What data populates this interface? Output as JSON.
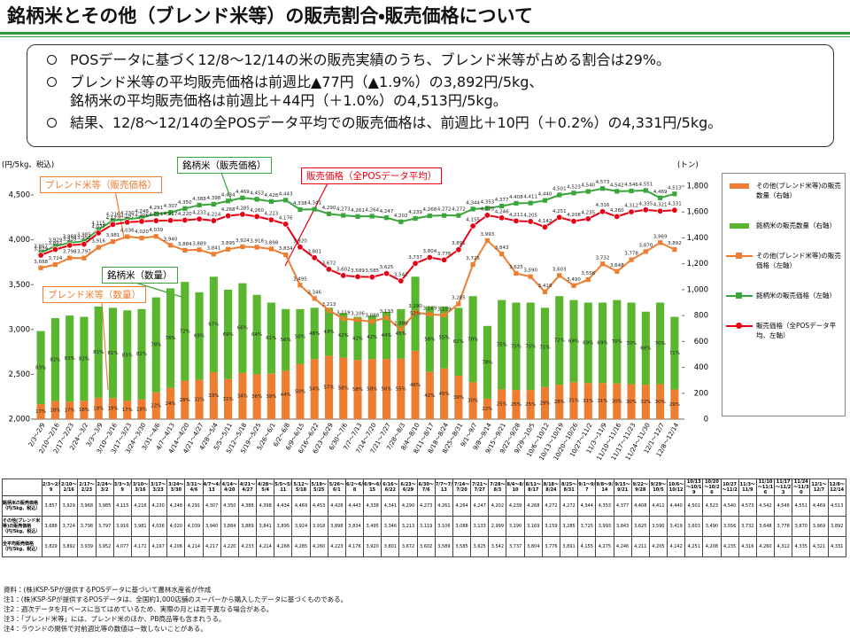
{
  "title": "銘柄米とその他（ブレンド米等）の販売割合・販売価格について",
  "bullets": [
    [
      "POSデータに基づく12/8～12/14の米の販売実績のうち、ブレンド米等が占める割合は29%。"
    ],
    [
      "ブレンド米等の平均販売価格は前週比▲77円（▲1.9%）の3,892円/5kg、",
      "銘柄米の平均販売価格は前週比＋44円（＋1.0%）の4,513円/5kg。"
    ],
    [
      "結果、12/8～12/14の全POSデータ平均での販売価格は、前週比＋10円（＋0.2%）の4,331円/5kg。"
    ]
  ],
  "chart_data": {
    "type": "combo",
    "y_label": "(円/5kg、税込)",
    "y2_label": "(トン)",
    "annotations": [
      "銘柄米（販売価格）",
      "ブレンド米等（販売価格）",
      "販売価格（全POSデータ平均）",
      "銘柄米（数量）",
      "ブレンド米等（数量）"
    ],
    "categories": [
      "2/3～2/9",
      "2/10～2/16",
      "2/17～2/23",
      "2/24～3/2",
      "3/3～3/9",
      "3/10～3/16",
      "3/17～3/23",
      "3/24～3/30",
      "3/31～4/6",
      "4/7～4/13",
      "4/14～4/20",
      "4/21～4/27",
      "4/28～5/4",
      "5/5～5/11",
      "5/12～5/18",
      "5/19～5/25",
      "5/26～6/1",
      "6/2～6/8",
      "6/9～6/15",
      "6/16～6/22",
      "6/23～6/29",
      "6/30～7/6",
      "7/7～7/13",
      "7/14～7/20",
      "7/21～7/27",
      "7/28～8/3",
      "8/4～8/10",
      "8/11～8/17",
      "8/18～8/24",
      "8/25～8/31",
      "9/1～9/7",
      "9/8～9/14",
      "9/15～9/21",
      "9/22～9/28",
      "9/29～10/5",
      "10/6～10/12",
      "10/13～10/19",
      "10/20～10/26",
      "10/27～11/2",
      "11/3～11/9",
      "11/10～11/16",
      "11/17～11/23",
      "11/24～11/30",
      "12/1～12/7",
      "12/8～12/14"
    ],
    "ylim": [
      2000,
      4600
    ],
    "yticks": [
      {
        "value": 2000,
        "label": "2,000"
      },
      {
        "value": 2500,
        "label": "2,500"
      },
      {
        "value": 3000,
        "label": "3,000"
      },
      {
        "value": 3500,
        "label": "3,500"
      },
      {
        "value": 4000,
        "label": "4,000"
      },
      {
        "value": 4500,
        "label": "4,500"
      }
    ],
    "y2lim": [
      0,
      1800
    ],
    "y2ticks": [
      0,
      200,
      400,
      600,
      800,
      {
        "value": 1000,
        "label": "1,000"
      },
      {
        "value": 1200,
        "label": "1,200"
      },
      {
        "value": 1400,
        "label": "1,400"
      },
      {
        "value": 1600,
        "label": "1,600"
      },
      {
        "value": 1800,
        "label": "1,800"
      }
    ],
    "series": [
      {
        "name": "その他(ブレンド米等)の販売数量（右軸）",
        "type": "bar",
        "axis": "y2",
        "color": "#ed7d31",
        "values": [
          116,
          140,
          136,
          142,
          165,
          163,
          143,
          153,
          207,
          242,
          297,
          304,
          363,
          310,
          357,
          346,
          351,
          374,
          425,
          464,
          490,
          476,
          458,
          464,
          465,
          468,
          528,
          365,
          392,
          335,
          285,
          158,
          230,
          225,
          225,
          249,
          266,
          285,
          279,
          279,
          276,
          270,
          266,
          270,
          229
        ],
        "share_labels": [
          "17%",
          "18%",
          "17%",
          "18%",
          "19%",
          "19%",
          "17%",
          "18%",
          "22%",
          "24%",
          "28%",
          "31%",
          "33%",
          "31%",
          "34%",
          "36%",
          "39%",
          "44%",
          "50%",
          "54%",
          "57%",
          "58%",
          "58%",
          "58%",
          "56%",
          "55%",
          "48%",
          "42%",
          "45%",
          "39%",
          "30%",
          "22%",
          "25%",
          "25%",
          "25%",
          "29%",
          "28%",
          "31%",
          "31%",
          "31%",
          "30%",
          "30%",
          "32%",
          "30%",
          "29%"
        ]
      },
      {
        "name": "銘柄米の販売数量（右軸）",
        "type": "bar",
        "axis": "y2",
        "color": "#5ab52f",
        "values": [
          564,
          640,
          664,
          648,
          705,
          697,
          697,
          697,
          733,
          768,
          763,
          676,
          737,
          690,
          693,
          614,
          549,
          476,
          425,
          396,
          370,
          344,
          332,
          336,
          365,
          382,
          572,
          505,
          478,
          525,
          665,
          562,
          690,
          675,
          675,
          611,
          684,
          635,
          621,
          621,
          644,
          630,
          564,
          630,
          561
        ],
        "share_labels": [
          "83%",
          "82%",
          "83%",
          "82%",
          "81%",
          "81%",
          "83%",
          "82%",
          "78%",
          "76%",
          "72%",
          "69%",
          "67%",
          "69%",
          "66%",
          "64%",
          "61%",
          "56%",
          "50%",
          "46%",
          "43%",
          "42%",
          "42%",
          "42%",
          "44%",
          "45%",
          "52%",
          "58%",
          "55%",
          "61%",
          "70%",
          "78%",
          "75%",
          "75%",
          "75%",
          "71%",
          "72%",
          "69%",
          "69%",
          "69%",
          "70%",
          "70%",
          "68%",
          "70%",
          "71%"
        ]
      },
      {
        "name": "その他(ブレンド米等)の販売価格（左軸）",
        "type": "line",
        "axis": "y",
        "color": "#ed7d31",
        "marker": "square",
        "values": [
          3688,
          3724,
          3798,
          3797,
          3916,
          3981,
          4036,
          4020,
          4039,
          3940,
          3884,
          3889,
          3841,
          3895,
          3924,
          3918,
          3898,
          3834,
          3495,
          3346,
          3213,
          3119,
          3106,
          3088,
          3133,
          2999,
          3190,
          3169,
          3159,
          3285,
          3725,
          3993,
          3843,
          3625,
          3590,
          3419,
          3603,
          3490,
          3556,
          3732,
          3648,
          3778,
          3870,
          3969,
          3892
        ],
        "value_labels": [
          "3,688",
          "3,724",
          "3,798",
          "3,797",
          "3,916",
          "3,981",
          "4,036",
          "4,020",
          "4,039",
          "3,940",
          "3,884",
          "3,889",
          "3,841",
          "3,895",
          "3,924",
          "3,918",
          "3,898",
          "3,834",
          "3,495",
          "3,346",
          "3,213",
          "3,119",
          "3,106",
          "3,088",
          "3,133",
          "2,999",
          "3,190",
          "3,169",
          "3,159",
          "3,285",
          "3,725",
          "3,993",
          "3,843",
          "3,625",
          "3,590",
          "3,419",
          "3,603",
          "3,490",
          "3,556",
          "3,732",
          "3,648",
          "3,778",
          "3,870",
          "3,969",
          "3,892"
        ]
      },
      {
        "name": "銘柄米の販売価格（左軸）",
        "type": "line",
        "axis": "y",
        "color": "#3aa53a",
        "marker": "square",
        "values": [
          3857,
          3929,
          3968,
          3985,
          4115,
          4216,
          4230,
          4248,
          4291,
          4307,
          4350,
          4388,
          4398,
          4434,
          4469,
          4453,
          4428,
          4443,
          4338,
          4341,
          4290,
          4273,
          4261,
          4264,
          4247,
          4202,
          4239,
          4268,
          4272,
          4272,
          4344,
          4353,
          4377,
          4408,
          4411,
          4440,
          4501,
          4523,
          4540,
          4573,
          4542,
          4546,
          4551,
          4469,
          4513
        ],
        "value_labels": [
          "3,857",
          "3,929",
          "3,968",
          "3,985",
          "4,115",
          "4,216",
          "4,230",
          "4,248",
          "4,291",
          "4,307",
          "4,350",
          "4,388",
          "4,398",
          "4,434",
          "4,469",
          "4,453",
          "4,428",
          "4,443",
          "4,338",
          "4,341",
          "4,290",
          "4,273",
          "4,261",
          "4,264",
          "4,247",
          "4,202",
          "4,239",
          "4,268",
          "4,272",
          "4,272",
          "4,344",
          "4,353",
          "4,377",
          "4,408",
          "4,411",
          "4,440",
          "4,501",
          "4,523",
          "4,540",
          "4,573",
          "4,542",
          "4,546",
          "4,551",
          "4,469",
          "4,513"
        ]
      },
      {
        "name": "販売価格（全POSデータ平均、左軸）",
        "type": "line",
        "axis": "y",
        "color": "#e60012",
        "marker": "circle",
        "values": [
          3829,
          3892,
          3939,
          3952,
          4077,
          4172,
          4197,
          4206,
          4214,
          4217,
          4220,
          4233,
          4214,
          4268,
          4285,
          4260,
          4223,
          4176,
          3920,
          3801,
          3672,
          3602,
          3589,
          3585,
          3625,
          3542,
          3737,
          3804,
          3776,
          3891,
          4155,
          4275,
          4246,
          4211,
          4205,
          4142,
          4251,
          4208,
          4235,
          4316,
          4260,
          4312,
          4335,
          4321,
          4331
        ],
        "value_labels": [
          "3,829",
          "3,892",
          "3,939",
          "3,952",
          "4,077",
          "4,172",
          "4,197",
          "4,206",
          "4,214",
          "4,217",
          "4,220",
          "4,233",
          "4,214",
          "4,268",
          "4,285",
          "4,260",
          "4,223",
          "4,176",
          "3,920",
          "3,801",
          "3,672",
          "3,602",
          "3,589",
          "3,585",
          "3,625",
          "3,542",
          "3,737",
          "3,804",
          "3,776",
          "3,891",
          "4,155",
          "4,275",
          "4,246",
          "4,211",
          "4,205",
          "4,142",
          "4,251",
          "4,208",
          "4,235",
          "4,316",
          "4,260",
          "4,312",
          "4,335",
          "4,321",
          "4,331"
        ]
      }
    ]
  },
  "table": {
    "rows": [
      {
        "label": "銘柄米の販売価格（円/5kg、税込）",
        "series": 3
      },
      {
        "label": "その他(ブレンド米等)の販売価格（円/5kg、税込）",
        "series": 2
      },
      {
        "label": "全平均販売価格（円/5kg、税込）",
        "series": 4
      }
    ]
  },
  "notes": [
    "資料：(株)KSP-SPが提供するPOSデータに基づいて農林水産省が作成",
    "注1：(株)KSP-SPが提供するPOSデータは、全国約1,000店舗のスーパーから購入したデータに基づくものである。",
    "注2：週次データを月ベースに当てはめているため、実際の月とは若干異なる場合がある。",
    "注3：「ブレンド米等」には、ブレンド米のほか、PB商品等も含まれうる。",
    "注4：ラウンドの関係で対前週比等の数値は一致しないことがある。"
  ]
}
